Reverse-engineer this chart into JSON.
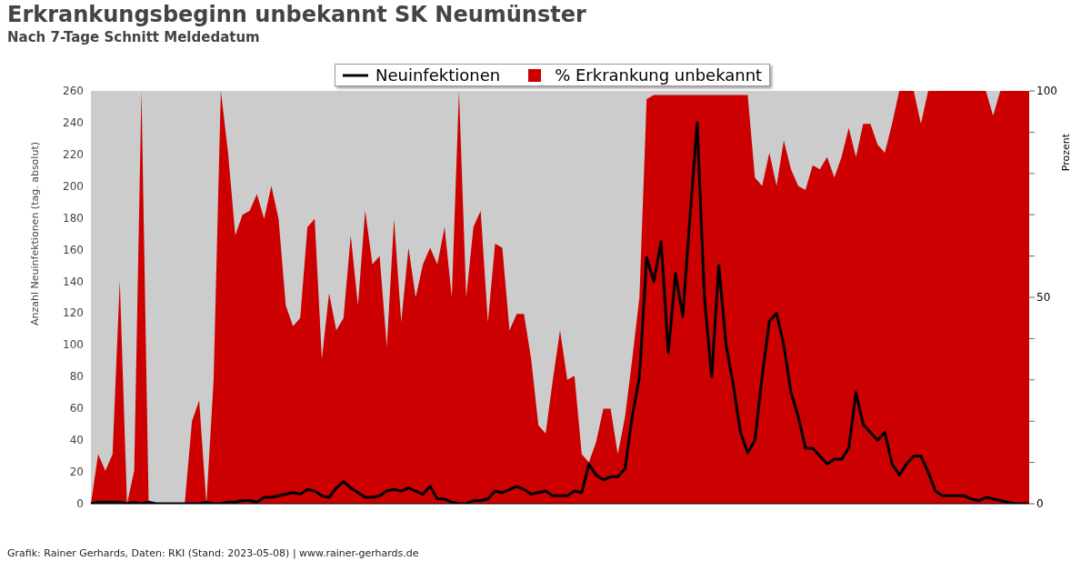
{
  "chart_data": {
    "type": "line",
    "title": "Erkrankungsbeginn unbekannt SK Neumünster",
    "subtitle": "Nach 7-Tage Schnitt Meldedatum",
    "ylabel": "Anzahl Neuinfektionen (tag. absolut)",
    "y2label": "Prozent",
    "annotations": [
      "Grafik: Rainer Gerhards, Daten: RKI (Stand: 2023-05-08) | www.rainer-gerhards.de"
    ],
    "categories": [
      null,
      null,
      null,
      null,
      null,
      null,
      null,
      null,
      null,
      null,
      null,
      null,
      null,
      null,
      null,
      null,
      null,
      null,
      null,
      null,
      null,
      null,
      null,
      null,
      null,
      null,
      null,
      null,
      null,
      null,
      null,
      null,
      null,
      null,
      null,
      null,
      null,
      null,
      null,
      null,
      null,
      null,
      null,
      null,
      null,
      null,
      null,
      null,
      null,
      null,
      null,
      null,
      null,
      null,
      null,
      null,
      null,
      null,
      null,
      null,
      null,
      null,
      null,
      null,
      null,
      null,
      null,
      null,
      null,
      null,
      null,
      null,
      null,
      null,
      null,
      null,
      null,
      null,
      null,
      null,
      null,
      null,
      null,
      null,
      null,
      null,
      null,
      null,
      null,
      null,
      null,
      null,
      null,
      null,
      null,
      null,
      null,
      null,
      null,
      null,
      null,
      null,
      null,
      null,
      null,
      null,
      null,
      null,
      null,
      null,
      null,
      null,
      null,
      null,
      null,
      null,
      null,
      null,
      null,
      null,
      null,
      null,
      null,
      null,
      null,
      null,
      null,
      null,
      null,
      null,
      null
    ],
    "series": [
      {
        "name": "Neuinfektionen",
        "color": "#000000",
        "values": [
          0,
          1,
          1,
          1,
          1,
          0,
          1,
          0,
          1,
          0,
          0,
          0,
          0,
          0,
          0,
          0,
          1,
          0,
          0,
          1,
          1,
          2,
          2,
          1,
          4,
          4,
          5,
          6,
          7,
          6,
          9,
          8,
          5,
          4,
          10,
          14,
          10,
          7,
          4,
          4,
          5,
          8,
          9,
          8,
          10,
          8,
          6,
          11,
          3,
          3,
          1,
          0,
          0,
          2,
          2,
          3,
          8,
          7,
          9,
          11,
          9,
          6,
          7,
          8,
          5,
          5,
          5,
          8,
          7,
          25,
          18,
          15,
          17,
          17,
          22,
          55,
          80,
          155,
          140,
          165,
          95,
          145,
          118,
          180,
          240,
          130,
          80,
          150,
          100,
          75,
          45,
          32,
          40,
          80,
          115,
          120,
          100,
          70,
          55,
          35,
          35,
          30,
          25,
          28,
          28,
          35,
          70,
          50,
          45,
          40,
          45,
          25,
          18,
          25,
          30,
          30,
          20,
          8,
          5,
          5,
          5,
          5,
          3,
          2,
          4,
          3,
          2,
          1,
          0,
          0,
          0
        ]
      },
      {
        "name": "% Erkrankung unbekannt",
        "type": "area",
        "axis": "y2",
        "color": "#cc0000",
        "values": [
          0,
          12,
          8,
          12,
          54,
          0,
          8,
          100,
          0,
          0,
          0,
          0,
          0,
          0,
          20,
          25,
          0,
          30,
          100,
          85,
          65,
          70,
          71,
          75,
          69,
          77,
          69,
          48,
          43,
          45,
          67,
          69,
          35,
          51,
          42,
          45,
          65,
          48,
          71,
          58,
          60,
          38,
          69,
          44,
          62,
          50,
          58,
          62,
          58,
          67,
          50,
          100,
          50,
          67,
          71,
          44,
          63,
          62,
          42,
          46,
          46,
          35,
          19,
          17,
          30,
          42,
          30,
          31,
          12,
          10,
          15,
          23,
          23,
          12,
          21,
          35,
          50,
          98,
          99,
          99,
          99,
          99,
          99,
          99,
          99,
          99,
          99,
          99,
          99,
          99,
          99,
          99,
          79,
          77,
          85,
          77,
          88,
          81,
          77,
          76,
          82,
          81,
          84,
          79,
          84,
          91,
          84,
          92,
          92,
          87,
          85,
          92,
          100,
          100,
          100,
          92,
          100,
          100,
          100,
          100,
          100,
          100,
          100,
          100,
          100,
          94,
          100,
          100,
          100,
          100,
          100
        ]
      }
    ],
    "ylim": [
      0,
      260
    ],
    "yticks": [
      0,
      20,
      40,
      60,
      80,
      100,
      120,
      140,
      160,
      180,
      200,
      220,
      240,
      260
    ],
    "y2lim": [
      0,
      100
    ],
    "y2ticks": [
      0,
      {
        "value": 10,
        "label": null
      },
      {
        "value": 20,
        "label": null
      },
      {
        "value": 30,
        "label": null
      },
      {
        "value": 40,
        "label": null
      },
      50,
      {
        "value": 60,
        "label": null
      },
      {
        "value": 70,
        "label": null
      },
      {
        "value": 80,
        "label": null
      },
      {
        "value": 90,
        "label": null
      },
      100
    ],
    "legend": "top",
    "marker": "none"
  }
}
